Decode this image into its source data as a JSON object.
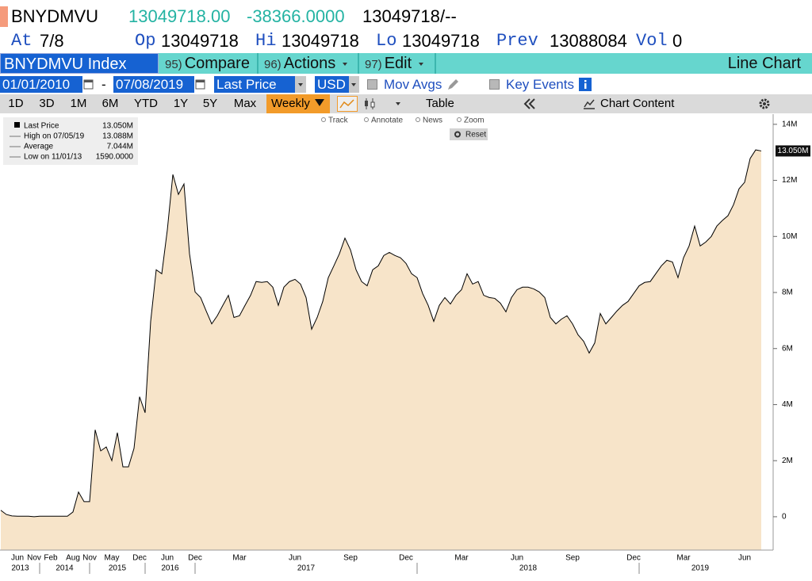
{
  "header": {
    "ticker": "BNYDMVU",
    "last": "13049718.00",
    "change": "-38366.0000",
    "bid": "13049718",
    "ask": "/--",
    "quote": [
      {
        "label": "At",
        "value": "7/8"
      },
      {
        "label": "Op",
        "value": "13049718"
      },
      {
        "label": "Hi",
        "value": "13049718"
      },
      {
        "label": "Lo",
        "value": "13049718"
      },
      {
        "label": "Prev",
        "value": "13088084"
      },
      {
        "label": "Vol",
        "value": "0"
      }
    ]
  },
  "toolbar": {
    "security": "BNYDMVU Index",
    "menus": [
      {
        "code": "95)",
        "label": "Compare"
      },
      {
        "code": "96)",
        "label": "Actions"
      },
      {
        "code": "97)",
        "label": "Edit"
      }
    ],
    "chart_type": "Line Chart",
    "start_date": "01/01/2010",
    "date_separator": "-",
    "end_date": "07/08/2019",
    "field": "Last Price",
    "currency": "USD",
    "mov_avgs": "Mov Avgs",
    "key_events": "Key Events",
    "periods": [
      "1D",
      "3D",
      "1M",
      "6M",
      "YTD",
      "1Y",
      "5Y",
      "Max"
    ],
    "frequency": "Weekly",
    "table": "Table",
    "chart_content": "Chart Content",
    "tools": [
      "Track",
      "Annotate",
      "News",
      "Zoom"
    ],
    "reset": "Reset"
  },
  "chart_data": {
    "type": "area",
    "categories": [
      null,
      null,
      null,
      "Jun",
      null,
      null,
      "Nov",
      null,
      null,
      "Feb",
      null,
      null,
      null,
      "Aug",
      null,
      null,
      "Nov",
      null,
      null,
      null,
      "May",
      null,
      null,
      null,
      null,
      "Dec",
      null,
      null,
      null,
      null,
      "Jun",
      null,
      null,
      null,
      null,
      "Dec",
      null,
      null,
      null,
      null,
      null,
      null,
      null,
      "Mar",
      null,
      null,
      null,
      null,
      null,
      null,
      null,
      null,
      null,
      "Jun",
      null,
      null,
      null,
      null,
      null,
      null,
      null,
      null,
      null,
      "Sep",
      null,
      null,
      null,
      null,
      null,
      null,
      null,
      null,
      null,
      "Dec",
      null,
      null,
      null,
      null,
      null,
      null,
      null,
      null,
      null,
      "Mar",
      null,
      null,
      null,
      null,
      null,
      null,
      null,
      null,
      null,
      "Jun",
      null,
      null,
      null,
      null,
      null,
      null,
      null,
      null,
      null,
      "Sep",
      null,
      null,
      null,
      null,
      null,
      null,
      null,
      null,
      null,
      null,
      "Dec",
      null,
      null,
      null,
      null,
      null,
      null,
      null,
      null,
      "Mar",
      null,
      null,
      null,
      null,
      null,
      null,
      null,
      null,
      null,
      null,
      "Jun",
      null,
      null,
      null
    ],
    "year_groups": [
      {
        "label": "2013",
        "from": 0,
        "to": 7
      },
      {
        "label": "2014",
        "from": 7,
        "to": 16
      },
      {
        "label": "2015",
        "from": 16,
        "to": 26
      },
      {
        "label": "2016",
        "from": 26,
        "to": 35
      },
      {
        "label": "2017",
        "from": 35,
        "to": 75
      },
      {
        "label": "2018",
        "from": 75,
        "to": 115
      },
      {
        "label": "2019",
        "from": 115,
        "to": 137
      }
    ],
    "series": [
      {
        "name": "Last Price",
        "color": "#000000",
        "fill": "#f7e4c9",
        "values": [
          230000,
          80000,
          30000,
          20000,
          20000,
          20000,
          1590,
          20000,
          20000,
          20000,
          20000,
          20000,
          20000,
          170000,
          880000,
          540000,
          540000,
          3100000,
          2350000,
          2490000,
          2000000,
          3000000,
          1780000,
          1780000,
          2440000,
          4280000,
          3710000,
          6970000,
          8810000,
          8670000,
          10230000,
          12210000,
          11500000,
          11870000,
          9380000,
          8020000,
          7820000,
          7340000,
          6880000,
          7170000,
          7540000,
          7900000,
          7110000,
          7170000,
          7540000,
          7900000,
          8390000,
          8360000,
          8390000,
          8190000,
          7540000,
          8190000,
          8390000,
          8470000,
          8300000,
          7820000,
          6690000,
          7110000,
          7680000,
          8530000,
          8950000,
          9380000,
          9940000,
          9520000,
          8810000,
          8390000,
          8240000,
          8810000,
          8950000,
          9320000,
          9430000,
          9320000,
          9240000,
          9040000,
          8670000,
          8530000,
          7960000,
          7540000,
          6970000,
          7540000,
          7820000,
          7590000,
          7900000,
          8100000,
          8670000,
          8300000,
          8390000,
          7900000,
          7820000,
          7790000,
          7620000,
          7310000,
          7820000,
          8100000,
          8190000,
          8190000,
          8130000,
          8020000,
          7820000,
          7110000,
          6880000,
          7050000,
          7170000,
          6880000,
          6490000,
          6260000,
          5840000,
          6200000,
          7250000,
          6880000,
          7110000,
          7340000,
          7540000,
          7680000,
          7960000,
          8240000,
          8360000,
          8390000,
          8670000,
          8950000,
          9150000,
          9090000,
          8530000,
          9240000,
          9660000,
          10370000,
          9660000,
          9800000,
          10000000,
          10370000,
          10570000,
          10740000,
          11130000,
          11700000,
          11930000,
          12780000,
          13088000,
          13050000
        ]
      }
    ],
    "last_value_label": "13.050M",
    "stats": [
      {
        "label": "High on 07/05/19",
        "value": "13.088M"
      },
      {
        "label": "Average",
        "value": "7.044M"
      },
      {
        "label": "Low on 11/01/13",
        "value": "1590.0000"
      }
    ],
    "ylim": [
      -1190000,
      14250000
    ],
    "yticks": [
      0,
      {
        "value": 2000000,
        "label": "2M"
      },
      {
        "value": 4000000,
        "label": "4M"
      },
      {
        "value": 6000000,
        "label": "6M"
      },
      {
        "value": 8000000,
        "label": "8M"
      },
      {
        "value": 10000000,
        "label": "10M"
      },
      {
        "value": 12000000,
        "label": "12M"
      },
      {
        "value": 14000000,
        "label": "14M"
      }
    ],
    "grid": false
  }
}
